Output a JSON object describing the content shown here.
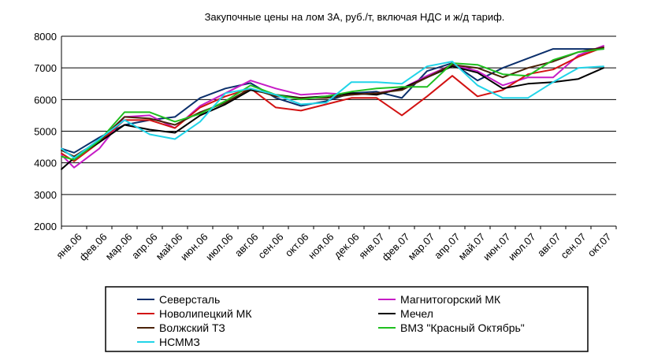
{
  "chart_data": {
    "type": "line",
    "title": "Закупочные цены на лом 3А, руб./т, включая НДС и ж/д тариф.",
    "xlabel": "",
    "ylabel": "",
    "ylim": [
      2000,
      8000
    ],
    "yticks": [
      "2000",
      "3000",
      "4000",
      "5000",
      "6000",
      "7000",
      "8000"
    ],
    "grid": true,
    "legend_position": "bottom",
    "categories": [
      "янв.06",
      "фев.06",
      "мар.06",
      "апр.06",
      "май.06",
      "июн.06",
      "июл.06",
      "авг.06",
      "сен.06",
      "окт.06",
      "ноя.06",
      "дек.06",
      "янв.07",
      "фев.07",
      "мар.07",
      "апр.07",
      "май.07",
      "июн.07",
      "июл.07",
      "авг.07",
      "сен.07",
      "окт.07"
    ],
    "x": [
      0,
      0.5,
      1.5,
      2.5,
      3.5,
      4.5,
      5.5,
      6.5,
      7.5,
      8.5,
      9.5,
      10.5,
      11.5,
      12.5,
      13.5,
      14.5,
      15.5,
      16.5,
      17.5,
      18.5,
      19.5,
      20.5,
      21.5
    ],
    "series": [
      {
        "name": "Северсталь",
        "color": "#0b2f6b",
        "values": [
          4450,
          4320,
          4800,
          5200,
          5350,
          5450,
          6050,
          6350,
          6520,
          6050,
          5800,
          5950,
          6200,
          6250,
          6050,
          6900,
          7150,
          6600,
          7000,
          7300,
          7600,
          7600,
          7600
        ]
      },
      {
        "name": "Магнитогорский МК",
        "color": "#c61cc6",
        "values": [
          4250,
          3850,
          4450,
          5450,
          5500,
          5100,
          5800,
          6200,
          6600,
          6350,
          6150,
          6200,
          6150,
          6200,
          6350,
          6750,
          7100,
          6900,
          6450,
          6700,
          6700,
          7400,
          7700
        ]
      },
      {
        "name": "Новолипецкий МК",
        "color": "#d21212",
        "values": [
          4300,
          4050,
          4650,
          5350,
          5350,
          5100,
          5750,
          6100,
          6350,
          5750,
          5650,
          5850,
          6050,
          6050,
          5500,
          6100,
          6750,
          6100,
          6300,
          6800,
          6950,
          7350,
          7650
        ]
      },
      {
        "name": "Мечел",
        "color": "#000000",
        "values": [
          3800,
          4150,
          4650,
          5200,
          5050,
          4950,
          5500,
          5850,
          6300,
          6150,
          6050,
          6100,
          6200,
          6150,
          6350,
          6700,
          7050,
          6850,
          6350,
          6500,
          6550,
          6650,
          7000
        ]
      },
      {
        "name": "Волжский ТЗ",
        "color": "#4a2209",
        "values": [
          4400,
          4200,
          4700,
          5450,
          5400,
          5200,
          5600,
          5900,
          6350,
          6100,
          6050,
          6050,
          6150,
          6200,
          6300,
          6700,
          7100,
          7000,
          6700,
          7000,
          7200,
          7500,
          7650
        ]
      },
      {
        "name": "ВМЗ \"Красный Октябрь\"",
        "color": "#1fbf1f",
        "values": [
          4200,
          4100,
          4700,
          5600,
          5600,
          5300,
          5550,
          5950,
          6450,
          6150,
          6000,
          6100,
          6250,
          6350,
          6400,
          6400,
          7150,
          7100,
          6800,
          6750,
          7250,
          7500,
          7600
        ]
      },
      {
        "name": "НСММЗ",
        "color": "#21d4e8",
        "values": [
          4450,
          4150,
          4750,
          5350,
          4900,
          4750,
          5300,
          6200,
          6350,
          6150,
          5850,
          5900,
          6550,
          6550,
          6500,
          7050,
          7200,
          6450,
          6050,
          6050,
          6550,
          7000,
          7050
        ]
      }
    ]
  }
}
